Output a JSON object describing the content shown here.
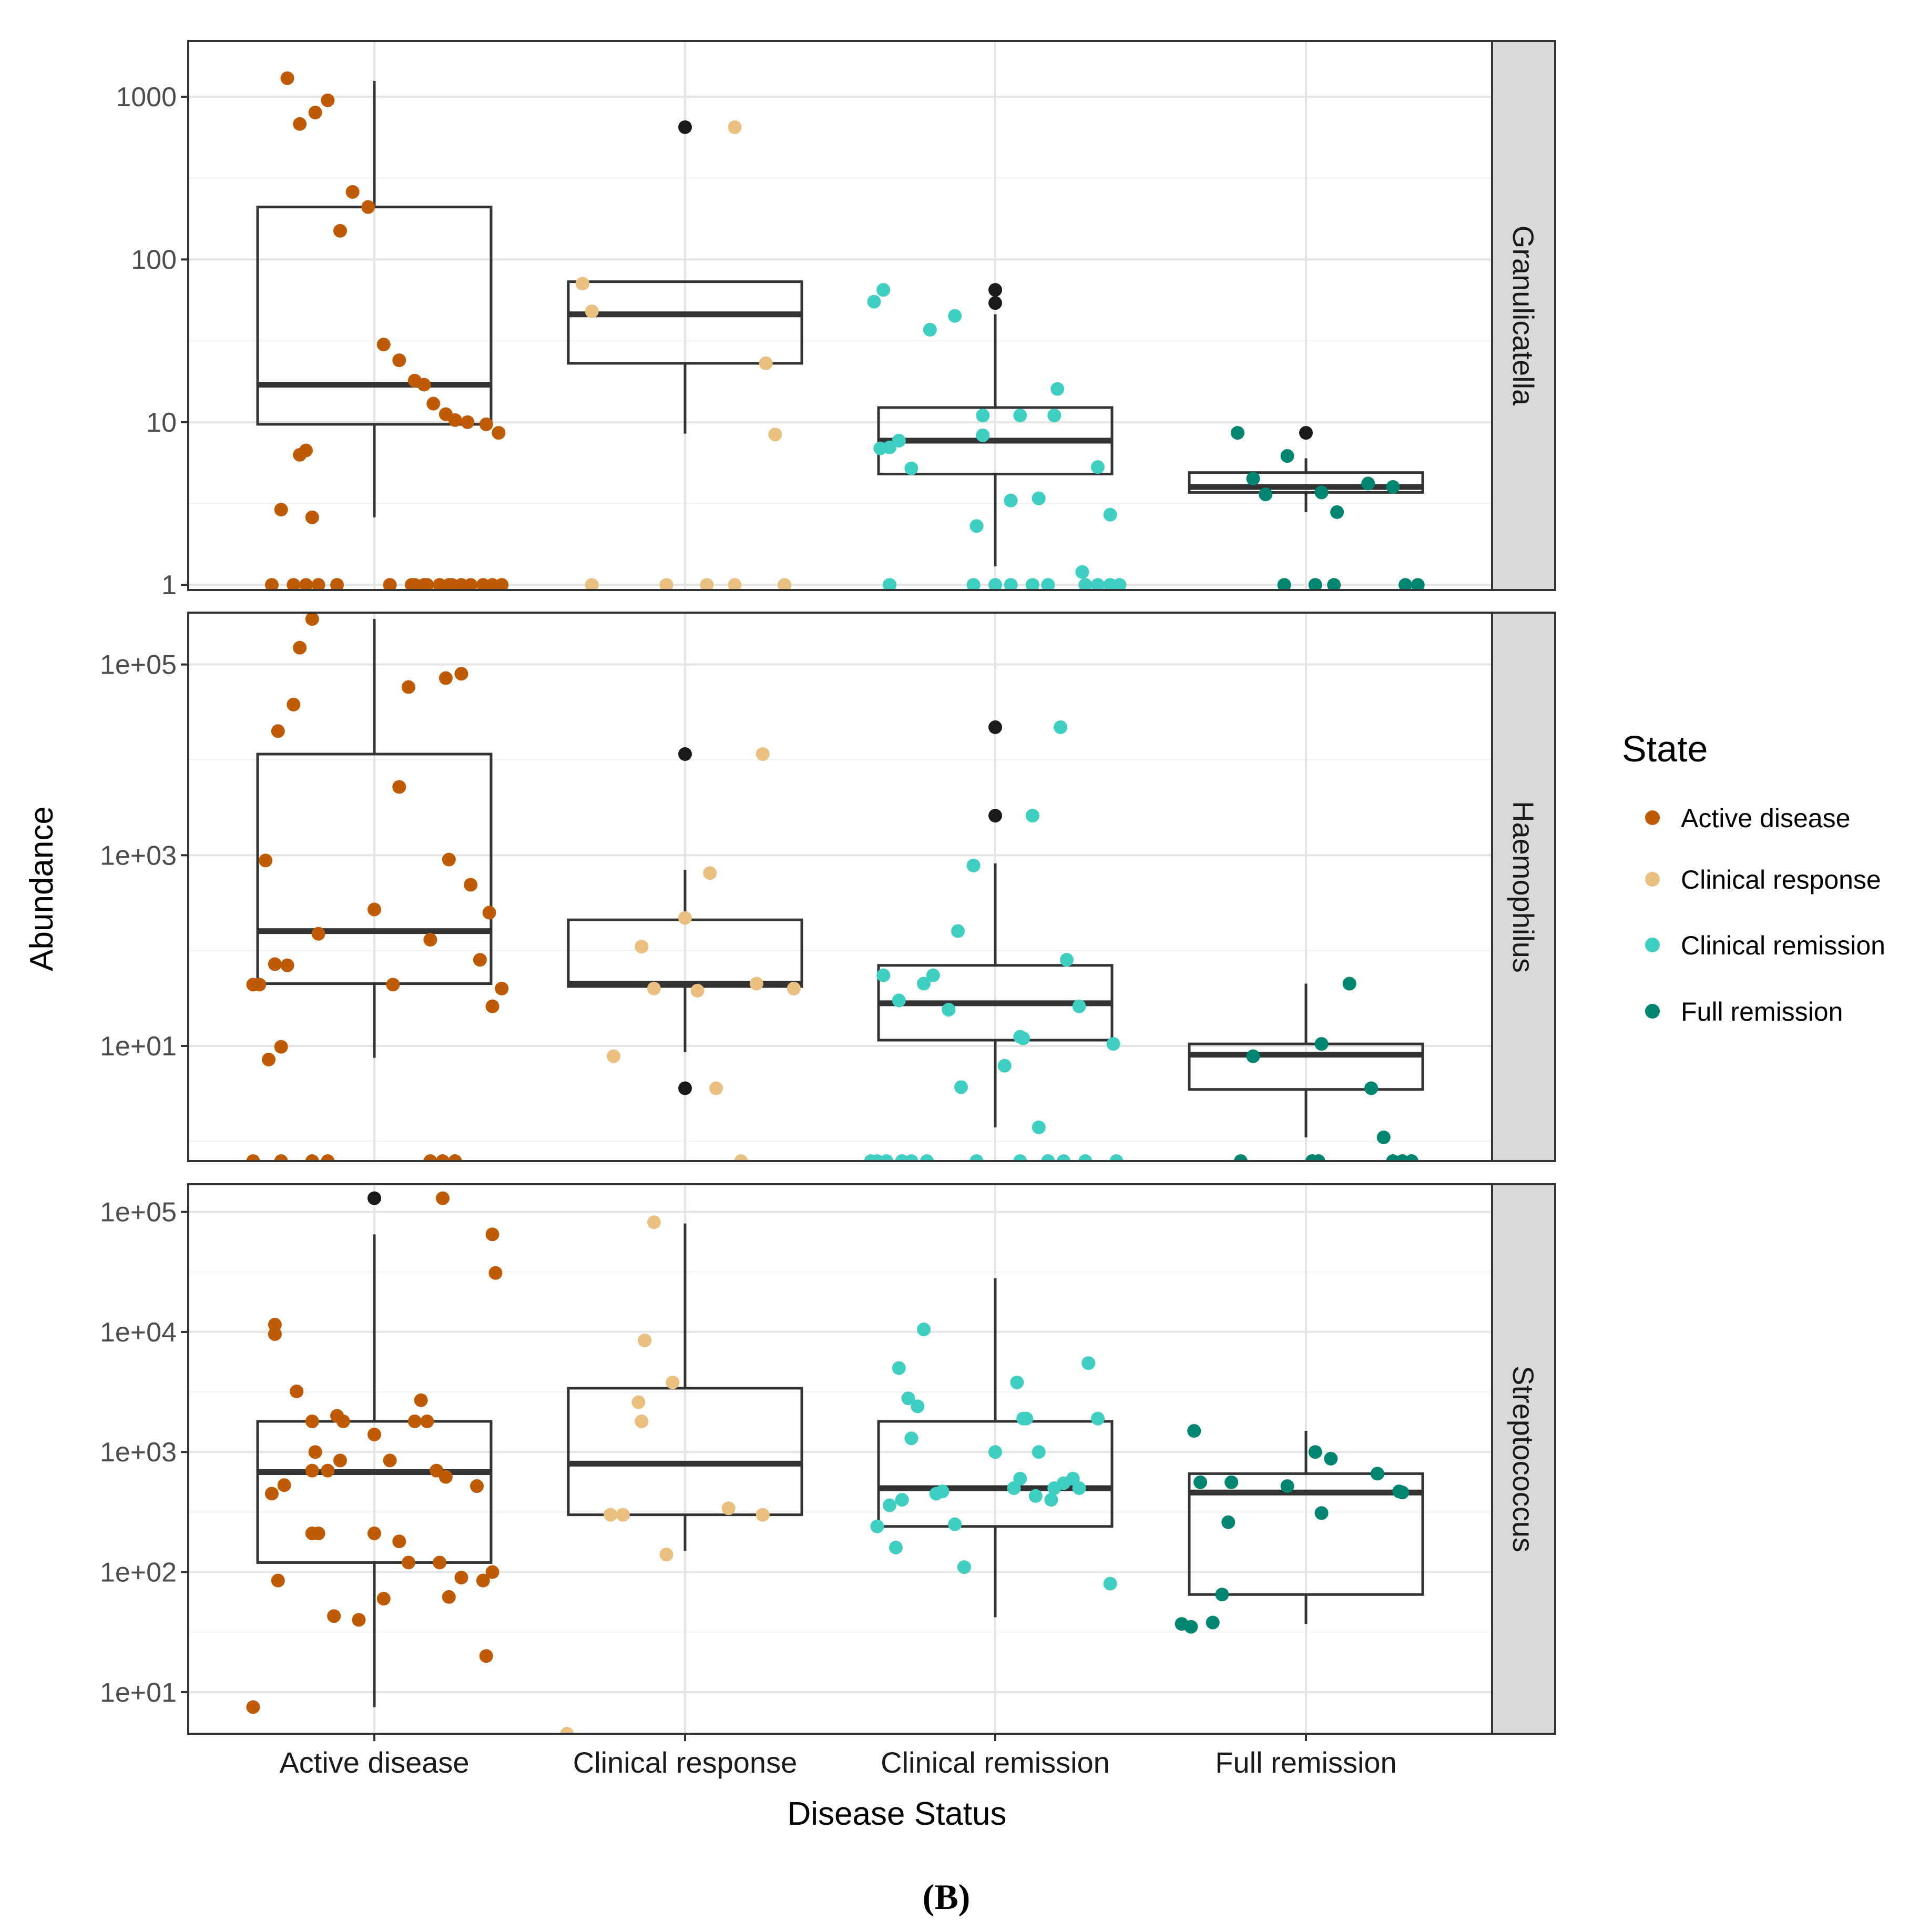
{
  "caption": "(B)",
  "chart_data": {
    "type": "boxplot",
    "xlabel": "Disease Status",
    "ylabel": "Abundance",
    "categories": [
      "Active disease",
      "Clinical response",
      "Clinical remission",
      "Full remission"
    ],
    "legend": {
      "title": "State",
      "position": "right",
      "entries": [
        {
          "label": "Active disease",
          "color": "#bf5b04"
        },
        {
          "label": "Clinical response",
          "color": "#e9c07f"
        },
        {
          "label": "Clinical remission",
          "color": "#3ecfc2"
        },
        {
          "label": "Full remission",
          "color": "#008570"
        }
      ]
    },
    "outlier_color": "#1a1a1a",
    "y_scale": "log10",
    "grid": true,
    "panels": [
      {
        "strip": "Granulicatella",
        "ylim": [
          0.93,
          2200
        ],
        "y_ticks": [
          1,
          10,
          100,
          1000
        ],
        "y_tick_labels": [
          "1",
          "10",
          "100",
          "1000"
        ],
        "boxes": [
          {
            "q1": 9.7,
            "median": 17,
            "q3": 210,
            "whisker_low": 2.6,
            "whisker_high": 1250,
            "outliers": []
          },
          {
            "q1": 23,
            "median": 46,
            "q3": 73,
            "whisker_low": 8.5,
            "whisker_high": 73,
            "outliers": [
              650
            ]
          },
          {
            "q1": 4.8,
            "median": 7.7,
            "q3": 12.3,
            "whisker_low": 1.3,
            "whisker_high": 46,
            "outliers": [
              54,
              65
            ]
          },
          {
            "q1": 3.7,
            "median": 4.0,
            "q3": 4.9,
            "whisker_low": 2.8,
            "whisker_high": 6.0,
            "outliers": [
              8.6
            ]
          }
        ],
        "points": [
          {
            "x": [
              -0.28,
              -0.24,
              -0.19,
              -0.15,
              -0.11,
              -0.07,
              -0.02,
              0.03,
              0.08,
              0.13,
              0.16,
              0.19,
              0.23,
              0.26,
              0.3,
              0.36,
              0.4,
              -0.22,
              -0.24,
              -0.3,
              -0.2,
              0.05,
              0.12,
              0.16,
              0.25,
              0.28,
              -0.33,
              -0.26,
              -0.22,
              -0.18,
              -0.12,
              0.13,
              0.17,
              0.21,
              0.24,
              0.31,
              0.35,
              0.38,
              0.41
            ],
            "y": [
              1300,
              680,
              800,
              950,
              150,
              260,
              210,
              30,
              24,
              18,
              17,
              13,
              11.2,
              10.3,
              10.0,
              9.7,
              8.6,
              6.7,
              6.3,
              2.9,
              2.6,
              1,
              1,
              1,
              1,
              1,
              1,
              1,
              1,
              1,
              1,
              1,
              1,
              1,
              1,
              1,
              1,
              1,
              1
            ]
          },
          {
            "x": [
              0.16,
              -0.33,
              -0.3,
              0.26,
              0.29,
              -0.3,
              -0.06,
              0.07,
              0.16,
              0.32
            ],
            "y": [
              650,
              71,
              48,
              23,
              8.4,
              1,
              1,
              1,
              1,
              1
            ]
          },
          {
            "x": [
              -0.39,
              -0.36,
              -0.21,
              -0.13,
              -0.37,
              -0.34,
              -0.31,
              -0.27,
              -0.04,
              -0.04,
              0.08,
              0.19,
              0.2,
              0.33,
              0.37,
              -0.06,
              0.05,
              0.14,
              0.28,
              -0.34,
              -0.07,
              0.0,
              0.05,
              0.12,
              0.17,
              0.29,
              0.33,
              0.37,
              0.4
            ],
            "y": [
              55,
              65,
              37,
              45,
              6.9,
              7.0,
              7.7,
              5.2,
              11,
              8.3,
              11,
              11,
              16,
              5.3,
              2.7,
              2.3,
              3.3,
              3.4,
              1.2,
              1,
              1,
              1,
              1,
              1,
              1,
              1,
              1,
              1,
              1
            ]
          },
          {
            "x": [
              -0.22,
              -0.17,
              -0.13,
              -0.06,
              0.05,
              0.1,
              0.2,
              0.28,
              0.36,
              -0.07,
              0.03,
              0.09,
              0.32
            ],
            "y": [
              8.6,
              4.5,
              3.6,
              6.2,
              3.7,
              2.8,
              4.2,
              4.0,
              1,
              1,
              1,
              1,
              1
            ]
          }
        ]
      },
      {
        "strip": "Haemophilus",
        "ylim": [
          0.62,
          350000
        ],
        "y_ticks": [
          10,
          1000,
          100000
        ],
        "y_tick_labels": [
          "1e+01",
          "1e+03",
          "1e+05"
        ],
        "boxes": [
          {
            "q1": 45,
            "median": 160,
            "q3": 11500,
            "whisker_low": 7.5,
            "whisker_high": 300000,
            "outliers": []
          },
          {
            "q1": 42,
            "median": 45,
            "q3": 210,
            "whisker_low": 8.6,
            "whisker_high": 700,
            "outliers": [
              3.6,
              11500
            ]
          },
          {
            "q1": 11.5,
            "median": 28,
            "q3": 70,
            "whisker_low": 1.4,
            "whisker_high": 820,
            "outliers": [
              2600,
              22000
            ]
          },
          {
            "q1": 3.5,
            "median": 8.1,
            "q3": 10.5,
            "whisker_low": 1.1,
            "whisker_high": 45,
            "outliers": []
          }
        ],
        "points": [
          {
            "x": [
              -0.2,
              -0.24,
              -0.26,
              -0.31,
              -0.35,
              -0.34,
              -0.3,
              -0.28,
              -0.18,
              0.08,
              0.11,
              0.18,
              0.23,
              0.24,
              0.28,
              0.31,
              0.34,
              0.37,
              0.38,
              0.41,
              -0.39,
              -0.37,
              -0.32,
              0.0,
              0.06,
              -0.39,
              -0.3,
              -0.2,
              -0.15,
              0.18,
              0.22,
              0.26
            ],
            "y": [
              300000,
              150000,
              38000,
              20000,
              880,
              7.2,
              9.8,
              70,
              150,
              5200,
              58000,
              130,
              72000,
              900,
              80000,
              490,
              80,
              250,
              26,
              40,
              44,
              44,
              72,
              270,
              44,
              0.62,
              0.62,
              0.62,
              0.62,
              0.62,
              0.62,
              0.62
            ]
          },
          {
            "x": [
              0.25,
              0.08,
              0.0,
              -0.14,
              -0.1,
              0.04,
              0.23,
              0.35,
              -0.23,
              0.1,
              0.18
            ],
            "y": [
              11500,
              650,
              220,
              110,
              40,
              38,
              45,
              40,
              7.8,
              3.6,
              0.62
            ]
          },
          {
            "x": [
              0.21,
              0.12,
              -0.07,
              -0.12,
              -0.2,
              -0.36,
              -0.31,
              -0.23,
              -0.15,
              0.08,
              0.09,
              0.23,
              0.14,
              0.27,
              0.38,
              -0.11,
              0.03,
              0.17,
              -0.4,
              -0.38,
              -0.35,
              -0.3,
              -0.27,
              -0.22,
              -0.06,
              0.08,
              0.17,
              0.22,
              0.29,
              0.39
            ],
            "y": [
              22000,
              2600,
              780,
              160,
              55,
              55,
              30,
              45,
              24,
              12.5,
              12,
              80,
              1.4,
              26,
              10.5,
              3.7,
              6.2,
              0.62,
              0.62,
              0.62,
              0.62,
              0.62,
              0.62,
              0.62,
              0.62,
              0.62,
              0.62,
              0.62,
              0.62,
              0.62
            ]
          },
          {
            "x": [
              0.14,
              0.05,
              -0.17,
              0.21,
              0.25,
              -0.21,
              0.02,
              0.04,
              0.28,
              0.31,
              0.34
            ],
            "y": [
              45,
              10.5,
              7.8,
              3.6,
              1.1,
              0.62,
              0.62,
              0.62,
              0.62,
              0.62,
              0.62
            ]
          }
        ]
      },
      {
        "strip": "Streptococcus",
        "ylim": [
          4.5,
          170000
        ],
        "y_ticks": [
          10,
          100,
          1000,
          10000,
          100000
        ],
        "y_tick_labels": [
          "1e+01",
          "1e+02",
          "1e+03",
          "1e+04",
          "1e+05"
        ],
        "boxes": [
          {
            "q1": 120,
            "median": 680,
            "q3": 1800,
            "whisker_low": 7.5,
            "whisker_high": 65000,
            "outliers": [
              130000
            ]
          },
          {
            "q1": 300,
            "median": 800,
            "q3": 3400,
            "whisker_low": 150,
            "whisker_high": 80000,
            "outliers": []
          },
          {
            "q1": 240,
            "median": 500,
            "q3": 1800,
            "whisker_low": 42,
            "whisker_high": 28000,
            "outliers": []
          },
          {
            "q1": 65,
            "median": 460,
            "q3": 660,
            "whisker_low": 37,
            "whisker_high": 1500,
            "outliers": []
          }
        ],
        "points": [
          {
            "x": [
              0.22,
              0.38,
              0.39,
              -0.32,
              -0.32,
              -0.25,
              -0.2,
              -0.12,
              -0.1,
              -0.11,
              -0.19,
              0.0,
              0.05,
              0.13,
              0.15,
              0.17,
              0.23,
              -0.33,
              -0.2,
              -0.18,
              0.0,
              0.08,
              0.11,
              0.21,
              0.24,
              0.35,
              -0.31,
              -0.13,
              -0.05,
              0.03,
              0.28,
              0.36,
              -0.29,
              -0.2,
              -0.15,
              0.2,
              0.38,
              0.33,
              -0.39
            ],
            "y": [
              130000,
              65000,
              31000,
              11500,
              9600,
              3200,
              1800,
              2000,
              1800,
              850,
              1000,
              1400,
              850,
              1800,
              2700,
              1800,
              620,
              450,
              210,
              210,
              210,
              180,
              120,
              120,
              62,
              85,
              85,
              43,
              40,
              60,
              90,
              20,
              530,
              700,
              700,
              700,
              100,
              520,
              7.5
            ]
          },
          {
            "x": [
              -0.1,
              -0.13,
              -0.15,
              -0.14,
              -0.24,
              -0.2,
              -0.06,
              0.14,
              0.25,
              -0.04,
              -0.38
            ],
            "y": [
              82000,
              8500,
              2600,
              1800,
              300,
              300,
              140,
              340,
              300,
              3800,
              4.5
            ]
          },
          {
            "x": [
              -0.23,
              -0.31,
              -0.28,
              -0.25,
              -0.27,
              -0.19,
              -0.3,
              -0.38,
              -0.34,
              -0.32,
              -0.1,
              0.06,
              0.1,
              0.3,
              0.33,
              0.08,
              0.13,
              0.18,
              0.22,
              0.27,
              -0.13,
              -0.17,
              0.0,
              0.07,
              0.09,
              0.14,
              0.19,
              0.25,
              0.37
            ],
            "y": [
              10500,
              5000,
              2800,
              2400,
              1300,
              450,
              400,
              240,
              360,
              160,
              110,
              500,
              1900,
              5500,
              1900,
              600,
              430,
              400,
              550,
              500,
              250,
              470,
              1000,
              3800,
              1900,
              1000,
              500,
              600,
              80
            ]
          },
          {
            "x": [
              -0.36,
              -0.34,
              -0.25,
              -0.27,
              -0.3,
              -0.37,
              -0.4,
              -0.24,
              -0.06,
              0.03,
              0.08,
              0.05,
              0.23,
              0.3,
              0.31
            ],
            "y": [
              1500,
              560,
              260,
              65,
              38,
              35,
              37,
              560,
              520,
              1000,
              880,
              310,
              660,
              470,
              460
            ]
          }
        ]
      }
    ]
  }
}
